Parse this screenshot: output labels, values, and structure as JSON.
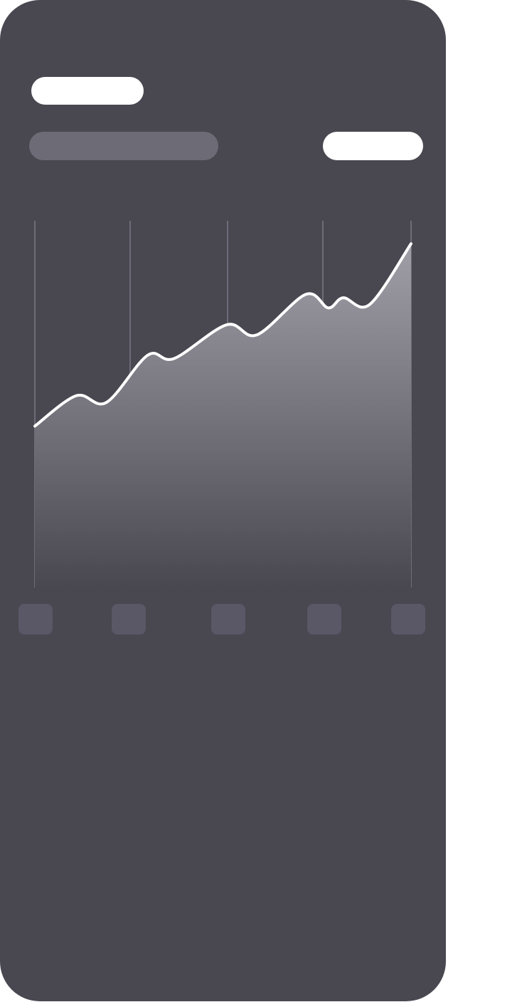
{
  "colors": {
    "card_background": "#494750",
    "primary_placeholder": "#ffffff",
    "secondary_placeholder": "#6d6b75",
    "line": "#ffffff",
    "gridline": "#6e6c78",
    "tick_placeholder": "#5a5766"
  },
  "chart_data": {
    "type": "area",
    "grid": true,
    "x": [
      0,
      0.11,
      0.19,
      0.3,
      0.37,
      0.51,
      0.59,
      0.72,
      0.78,
      0.82,
      0.89,
      1.0
    ],
    "values": [
      43,
      52,
      50,
      64,
      63,
      73,
      70,
      82,
      78,
      81,
      79,
      97
    ],
    "ylim": [
      0,
      100
    ],
    "x_tick_count": 5
  }
}
